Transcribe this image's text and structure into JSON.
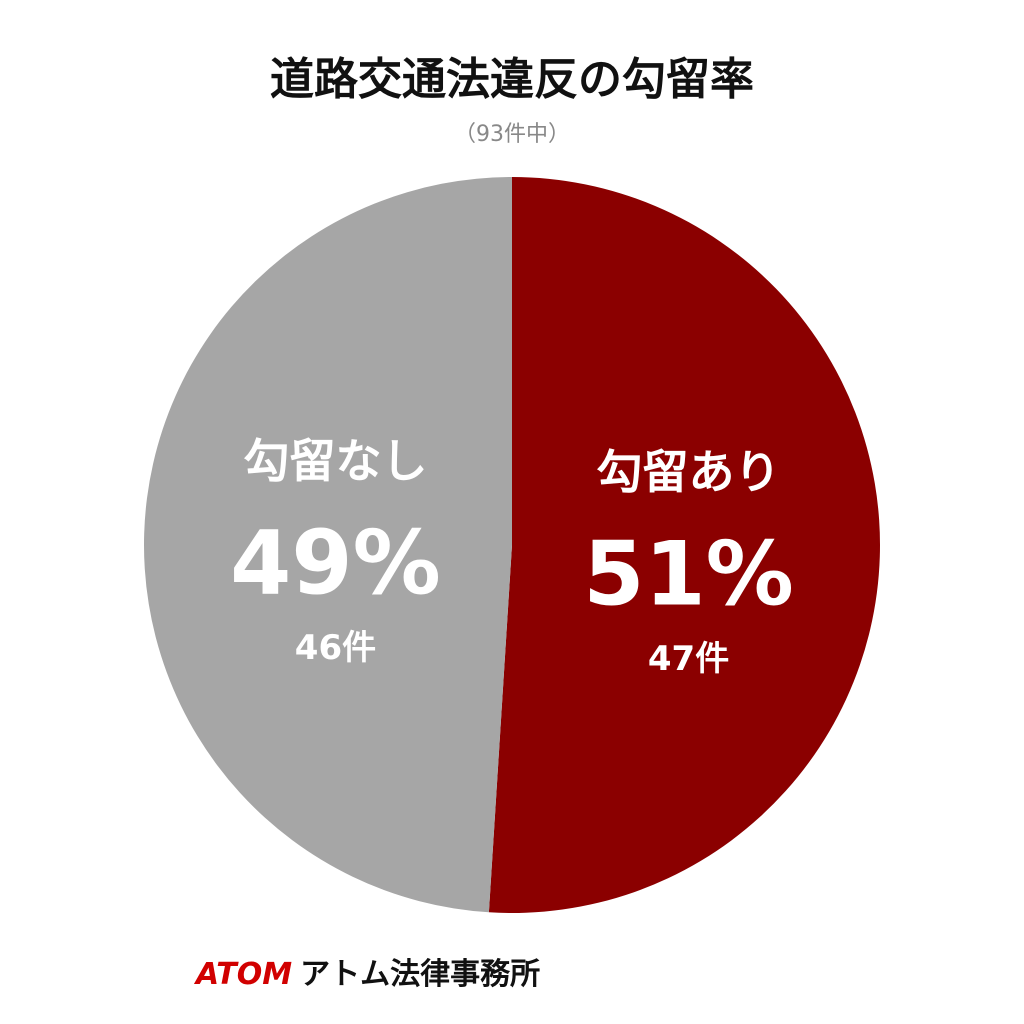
{
  "chart_data": {
    "type": "pie",
    "title": "道路交通法違反の勾留率",
    "subtitle": "（93件中）",
    "categories": [
      "勾留あり",
      "勾留なし"
    ],
    "values": [
      51,
      49
    ],
    "value_labels": [
      "51%",
      "49%"
    ],
    "count_labels": [
      "47件",
      "46件"
    ],
    "colors": [
      "#8b0000",
      "#a6a6a6"
    ]
  },
  "footer": {
    "brand": "ATOM",
    "name": "アトム法律事務所"
  }
}
